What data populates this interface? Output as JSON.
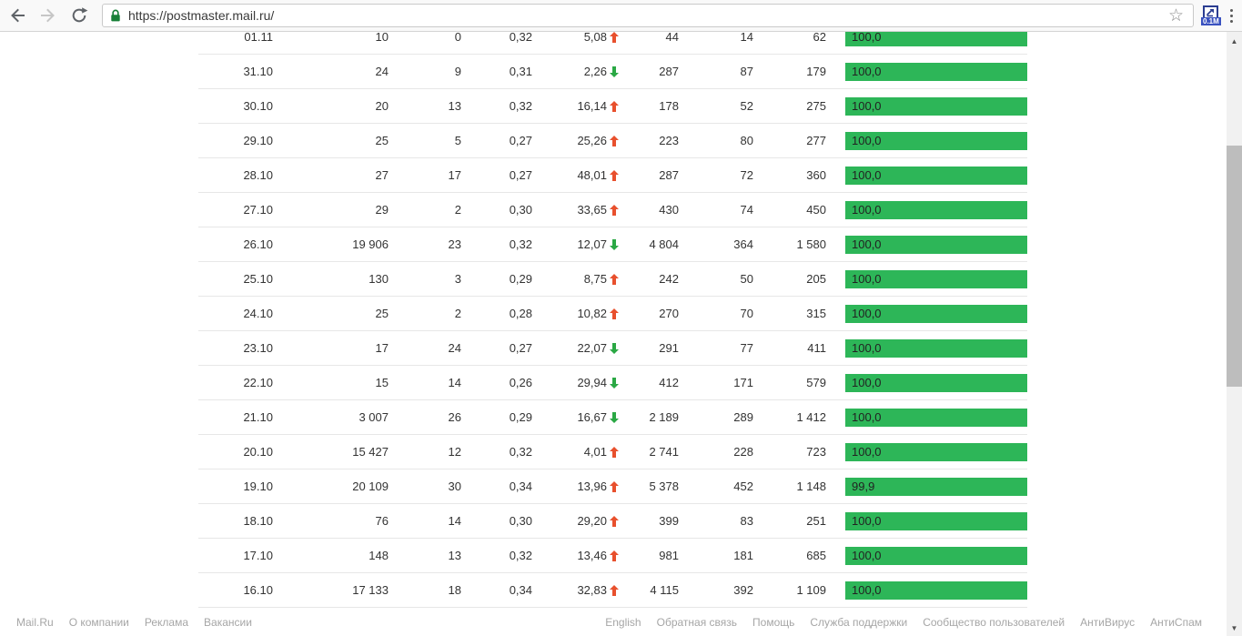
{
  "browser": {
    "url": "https://postmaster.mail.ru/",
    "extension_badge": "0.1M"
  },
  "icons": {
    "back-icon": "left-arrow",
    "forward-icon": "right-arrow (disabled)",
    "reload-icon": "circular-arrow",
    "lock-icon": "green padlock (secure https)",
    "bookmark-star-icon": "☆",
    "extension-icon": "blue square with diagonal arrow",
    "menu-icon": "⋮",
    "trend-up-icon": "red solid up arrow",
    "trend-down-icon": "green solid down arrow",
    "scroll-up-icon": "▲",
    "scroll-down-icon": "▼"
  },
  "colors": {
    "bar_green": "#2db658",
    "trend_up_red": "#e8502d",
    "trend_down_green": "#2aा"
  },
  "chart_data": {
    "type": "table",
    "note": "daily mail statistics, columns unlabeled in viewport (header scrolled off)",
    "rows": [
      {
        "date": "01.11",
        "v1": "10",
        "v2": "0",
        "v3": "0,32",
        "pct": "5,08",
        "trend": "up",
        "v4": "44",
        "v5": "14",
        "v6": "62",
        "bar": "100,0"
      },
      {
        "date": "31.10",
        "v1": "24",
        "v2": "9",
        "v3": "0,31",
        "pct": "2,26",
        "trend": "down",
        "v4": "287",
        "v5": "87",
        "v6": "179",
        "bar": "100,0"
      },
      {
        "date": "30.10",
        "v1": "20",
        "v2": "13",
        "v3": "0,32",
        "pct": "16,14",
        "trend": "up",
        "v4": "178",
        "v5": "52",
        "v6": "275",
        "bar": "100,0"
      },
      {
        "date": "29.10",
        "v1": "25",
        "v2": "5",
        "v3": "0,27",
        "pct": "25,26",
        "trend": "up",
        "v4": "223",
        "v5": "80",
        "v6": "277",
        "bar": "100,0"
      },
      {
        "date": "28.10",
        "v1": "27",
        "v2": "17",
        "v3": "0,27",
        "pct": "48,01",
        "trend": "up",
        "v4": "287",
        "v5": "72",
        "v6": "360",
        "bar": "100,0"
      },
      {
        "date": "27.10",
        "v1": "29",
        "v2": "2",
        "v3": "0,30",
        "pct": "33,65",
        "trend": "up",
        "v4": "430",
        "v5": "74",
        "v6": "450",
        "bar": "100,0"
      },
      {
        "date": "26.10",
        "v1": "19 906",
        "v2": "23",
        "v3": "0,32",
        "pct": "12,07",
        "trend": "down",
        "v4": "4 804",
        "v5": "364",
        "v6": "1 580",
        "bar": "100,0"
      },
      {
        "date": "25.10",
        "v1": "130",
        "v2": "3",
        "v3": "0,29",
        "pct": "8,75",
        "trend": "up",
        "v4": "242",
        "v5": "50",
        "v6": "205",
        "bar": "100,0"
      },
      {
        "date": "24.10",
        "v1": "25",
        "v2": "2",
        "v3": "0,28",
        "pct": "10,82",
        "trend": "up",
        "v4": "270",
        "v5": "70",
        "v6": "315",
        "bar": "100,0"
      },
      {
        "date": "23.10",
        "v1": "17",
        "v2": "24",
        "v3": "0,27",
        "pct": "22,07",
        "trend": "down",
        "v4": "291",
        "v5": "77",
        "v6": "411",
        "bar": "100,0"
      },
      {
        "date": "22.10",
        "v1": "15",
        "v2": "14",
        "v3": "0,26",
        "pct": "29,94",
        "trend": "down",
        "v4": "412",
        "v5": "171",
        "v6": "579",
        "bar": "100,0"
      },
      {
        "date": "21.10",
        "v1": "3 007",
        "v2": "26",
        "v3": "0,29",
        "pct": "16,67",
        "trend": "down",
        "v4": "2 189",
        "v5": "289",
        "v6": "1 412",
        "bar": "100,0"
      },
      {
        "date": "20.10",
        "v1": "15 427",
        "v2": "12",
        "v3": "0,32",
        "pct": "4,01",
        "trend": "up",
        "v4": "2 741",
        "v5": "228",
        "v6": "723",
        "bar": "100,0"
      },
      {
        "date": "19.10",
        "v1": "20 109",
        "v2": "30",
        "v3": "0,34",
        "pct": "13,96",
        "trend": "up",
        "v4": "5 378",
        "v5": "452",
        "v6": "1 148",
        "bar": "99,9"
      },
      {
        "date": "18.10",
        "v1": "76",
        "v2": "14",
        "v3": "0,30",
        "pct": "29,20",
        "trend": "up",
        "v4": "399",
        "v5": "83",
        "v6": "251",
        "bar": "100,0"
      },
      {
        "date": "17.10",
        "v1": "148",
        "v2": "13",
        "v3": "0,32",
        "pct": "13,46",
        "trend": "up",
        "v4": "981",
        "v5": "181",
        "v6": "685",
        "bar": "100,0"
      },
      {
        "date": "16.10",
        "v1": "17 133",
        "v2": "18",
        "v3": "0,34",
        "pct": "32,83",
        "trend": "up",
        "v4": "4 115",
        "v5": "392",
        "v6": "1 109",
        "bar": "100,0"
      }
    ]
  },
  "footer": {
    "left": [
      "Mail.Ru",
      "О компании",
      "Реклама",
      "Вакансии"
    ],
    "right": [
      "English",
      "Обратная связь",
      "Помощь",
      "Служба поддержки",
      "Сообщество пользователей",
      "АнтиВирус",
      "АнтиСпам"
    ]
  }
}
